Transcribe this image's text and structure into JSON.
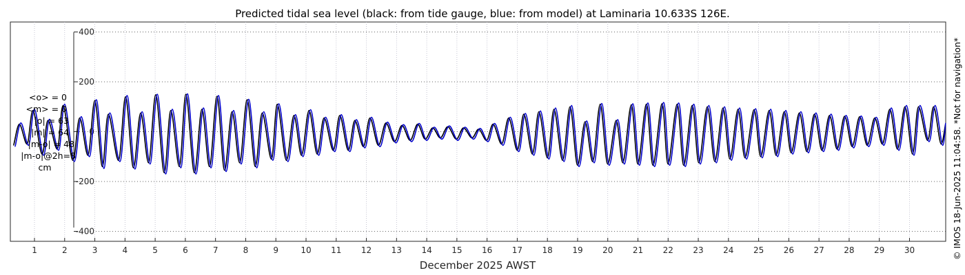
{
  "chart_data": {
    "type": "line",
    "title": "Predicted tidal sea level (black: from tide gauge, blue: from model) at Laminaria 10.633S 126E.",
    "xlabel": "December 2025 AWST",
    "ylabel": "",
    "xlim": [
      0.2,
      31.2
    ],
    "ylim": [
      -440,
      440
    ],
    "x_ticks": [
      1,
      2,
      3,
      4,
      5,
      6,
      7,
      8,
      9,
      10,
      11,
      12,
      13,
      14,
      15,
      16,
      17,
      18,
      19,
      20,
      21,
      22,
      23,
      24,
      25,
      26,
      27,
      28,
      29,
      30
    ],
    "x_tick_labels": [
      "1",
      "2",
      "3",
      "4",
      "5",
      "6",
      "7",
      "8",
      "9",
      "10",
      "11",
      "12",
      "13",
      "14",
      "15",
      "16",
      "17",
      "18",
      "19",
      "20",
      "21",
      "22",
      "23",
      "24",
      "25",
      "26",
      "27",
      "28",
      "29",
      "30"
    ],
    "y_ticks": [
      -400,
      -200,
      0,
      200,
      400
    ],
    "y_tick_labels": [
      "-400",
      "-200",
      "0",
      "200",
      "400"
    ],
    "grid": true,
    "units": "cm",
    "series": [
      {
        "name": "tide gauge",
        "color": "#000000",
        "x": [
          0.3,
          0.5,
          0.75,
          0.95,
          1.25,
          1.45,
          1.75,
          1.95,
          2.27,
          2.5,
          2.77,
          3.0,
          3.25,
          3.45,
          3.78,
          4.02,
          4.28,
          4.52,
          4.78,
          5.02,
          5.3,
          5.52,
          5.8,
          6.02,
          6.3,
          6.55,
          6.8,
          7.05,
          7.3,
          7.55,
          7.8,
          8.05,
          8.32,
          8.55,
          8.85,
          9.05,
          9.35,
          9.6,
          9.85,
          10.1,
          10.37,
          10.6,
          10.9,
          11.12,
          11.4,
          11.62,
          11.9,
          12.12,
          12.4,
          12.65,
          12.93,
          13.18,
          13.45,
          13.7,
          13.95,
          14.2,
          14.45,
          14.7,
          14.98,
          15.22,
          15.5,
          15.72,
          15.98,
          16.2,
          16.48,
          16.72,
          17.0,
          17.22,
          17.5,
          17.72,
          18.0,
          18.22,
          18.5,
          18.75,
          19.0,
          19.25,
          19.5,
          19.75,
          20.0,
          20.28,
          20.5,
          20.78,
          21.0,
          21.28,
          21.5,
          21.8,
          22.0,
          22.3,
          22.52,
          22.8,
          23.02,
          23.3,
          23.55,
          23.82,
          24.05,
          24.32,
          24.55,
          24.85,
          25.07,
          25.35,
          25.58,
          25.85,
          26.08,
          26.35,
          26.6,
          26.85,
          27.1,
          27.35,
          27.6,
          27.85,
          28.1,
          28.35,
          28.6,
          28.85,
          29.1,
          29.35,
          29.6,
          29.85,
          30.1,
          30.3,
          30.6,
          30.8,
          31.05,
          31.2
        ],
        "values": [
          -55,
          30,
          -50,
          85,
          -90,
          45,
          -70,
          105,
          -115,
          55,
          -95,
          125,
          -140,
          70,
          -115,
          140,
          -145,
          75,
          -125,
          148,
          -165,
          85,
          -140,
          150,
          -165,
          90,
          -140,
          142,
          -155,
          80,
          -125,
          128,
          -140,
          75,
          -110,
          110,
          -115,
          65,
          -95,
          85,
          -90,
          55,
          -75,
          65,
          -75,
          45,
          -60,
          55,
          -55,
          35,
          -40,
          25,
          -35,
          30,
          -30,
          15,
          -25,
          20,
          -30,
          15,
          -25,
          10,
          -35,
          30,
          -50,
          55,
          -75,
          70,
          -90,
          80,
          -105,
          90,
          -115,
          100,
          -135,
          40,
          -120,
          110,
          -130,
          45,
          -125,
          108,
          -130,
          110,
          -135,
          112,
          -130,
          110,
          -135,
          105,
          -125,
          100,
          -120,
          95,
          -110,
          90,
          -105,
          88,
          -100,
          85,
          -95,
          80,
          -85,
          75,
          -80,
          70,
          -75,
          65,
          -70,
          62,
          -60,
          60,
          -55,
          55,
          -50,
          90,
          -70,
          100,
          -90,
          100,
          -35,
          100,
          -50,
          30
        ]
      },
      {
        "name": "model",
        "color": "#0000cc",
        "x": [
          0.35,
          0.55,
          0.8,
          1.0,
          1.3,
          1.5,
          1.8,
          2.0,
          2.32,
          2.55,
          2.82,
          3.05,
          3.3,
          3.5,
          3.83,
          4.07,
          4.33,
          4.57,
          4.83,
          5.07,
          5.35,
          5.57,
          5.85,
          6.07,
          6.35,
          6.6,
          6.85,
          7.1,
          7.35,
          7.6,
          7.85,
          8.1,
          8.37,
          8.6,
          8.9,
          9.1,
          9.4,
          9.65,
          9.9,
          10.15,
          10.42,
          10.65,
          10.95,
          11.17,
          11.45,
          11.67,
          11.95,
          12.17,
          12.45,
          12.7,
          12.98,
          13.23,
          13.5,
          13.75,
          14.0,
          14.25,
          14.5,
          14.75,
          15.03,
          15.27,
          15.55,
          15.77,
          16.03,
          16.25,
          16.53,
          16.77,
          17.05,
          17.27,
          17.55,
          17.77,
          18.05,
          18.27,
          18.55,
          18.8,
          19.05,
          19.3,
          19.55,
          19.8,
          20.05,
          20.33,
          20.55,
          20.83,
          21.05,
          21.33,
          21.55,
          21.85,
          22.05,
          22.35,
          22.57,
          22.85,
          23.07,
          23.35,
          23.6,
          23.87,
          24.1,
          24.37,
          24.6,
          24.9,
          25.12,
          25.4,
          25.63,
          25.9,
          26.13,
          26.4,
          26.65,
          26.9,
          27.15,
          27.4,
          27.65,
          27.9,
          28.15,
          28.4,
          28.65,
          28.9,
          29.15,
          29.4,
          29.65,
          29.9,
          30.15,
          30.35,
          30.65,
          30.85,
          31.1,
          31.2
        ],
        "values": [
          -60,
          35,
          -55,
          90,
          -95,
          50,
          -75,
          110,
          -120,
          60,
          -100,
          128,
          -148,
          75,
          -120,
          145,
          -150,
          80,
          -130,
          150,
          -170,
          90,
          -145,
          152,
          -170,
          95,
          -145,
          145,
          -160,
          85,
          -130,
          130,
          -145,
          80,
          -115,
          112,
          -120,
          68,
          -100,
          88,
          -95,
          58,
          -80,
          68,
          -80,
          48,
          -65,
          58,
          -60,
          38,
          -45,
          28,
          -40,
          33,
          -35,
          18,
          -30,
          23,
          -35,
          18,
          -30,
          13,
          -40,
          33,
          -55,
          58,
          -80,
          73,
          -95,
          83,
          -110,
          95,
          -120,
          105,
          -140,
          43,
          -125,
          113,
          -135,
          48,
          -130,
          112,
          -135,
          115,
          -140,
          117,
          -135,
          115,
          -140,
          110,
          -130,
          105,
          -125,
          100,
          -115,
          95,
          -110,
          92,
          -105,
          90,
          -100,
          85,
          -90,
          80,
          -85,
          75,
          -80,
          70,
          -75,
          65,
          -65,
          63,
          -60,
          58,
          -55,
          95,
          -75,
          105,
          -95,
          105,
          -40,
          105,
          -55,
          35
        ]
      }
    ]
  },
  "stats": {
    "mean_obs": "<o> = 0",
    "mean_model": "<m> = 0",
    "abs_obs": "|o| = 63",
    "abs_model": "|m| = 64",
    "abs_diff": "|m-o| = 48",
    "abs_diff_2h": "|m-o|@2h=8",
    "units": "cm"
  },
  "credit": "© IMOS 18-Jun-2025 11:04:58.  *Not for navigation*"
}
